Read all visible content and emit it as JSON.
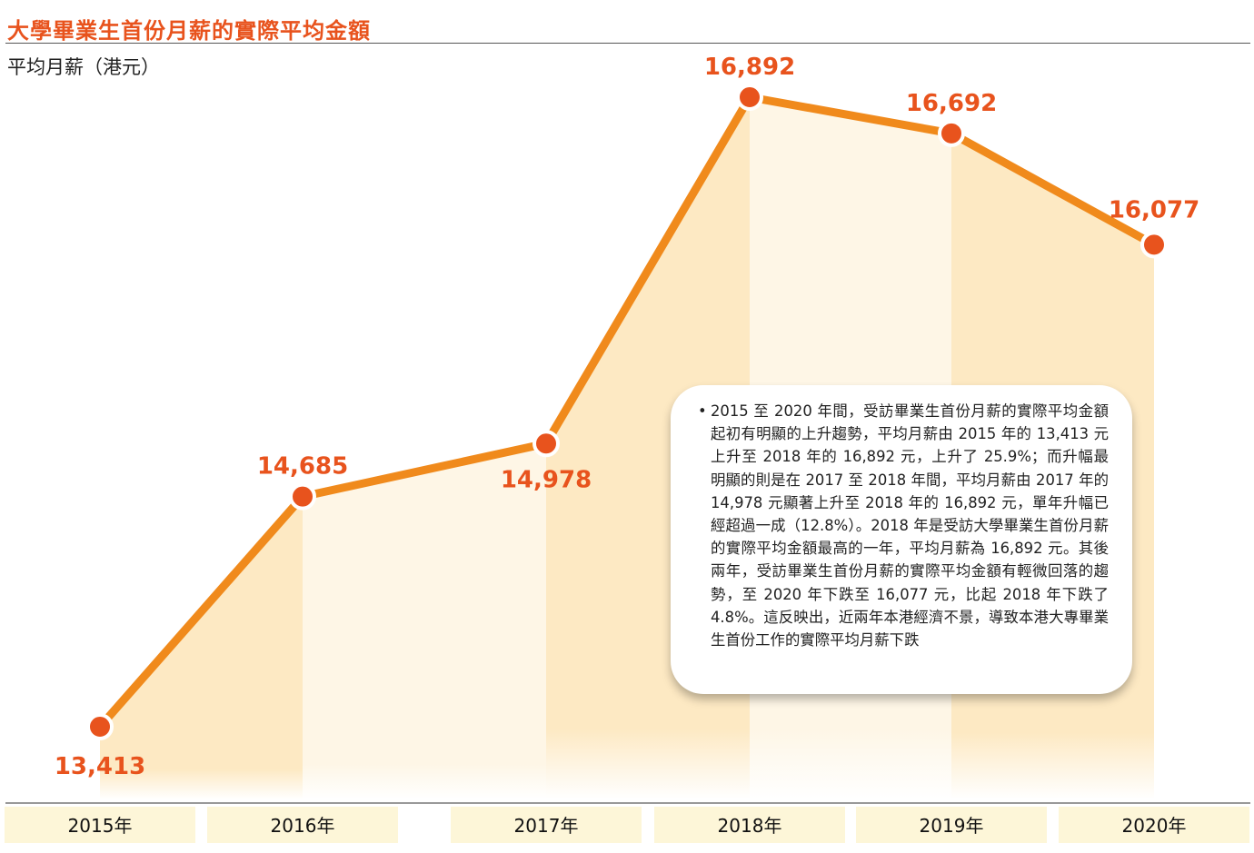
{
  "title": "大學畢業生首份月薪的實際平均金額",
  "unit_label": "平均月薪（港元）",
  "chart_data": {
    "type": "area",
    "categories": [
      "2015年",
      "2016年",
      "2017年",
      "2018年",
      "2019年",
      "2020年"
    ],
    "values": [
      13413,
      14685,
      14978,
      16892,
      16692,
      16077
    ],
    "value_labels": [
      "13,413",
      "14,685",
      "14,978",
      "16,892",
      "16,692",
      "16,077"
    ],
    "title": "大學畢業生首份月薪的實際平均金額",
    "ylabel": "平均月薪（港元）",
    "xlabel": "",
    "grid": false,
    "colors": {
      "line": "#f08a1c",
      "point": "#e8531d",
      "label": "#e8531d",
      "band_dark": "#fde9c3",
      "band_light": "#fef6e6",
      "category_band": "#fdf6d8"
    }
  },
  "note": {
    "text": "2015 至 2020 年間，受訪畢業生首份月薪的實際平均金額起初有明顯的上升趨勢，平均月薪由 2015 年的 13,413 元上升至 2018 年的 16,892 元，上升了 25.9%；而升幅最明顯的則是在 2017 至 2018 年間，平均月薪由 2017 年的 14,978 元顯著上升至 2018 年的 16,892 元，單年升幅已經超過一成（12.8%）。2018 年是受訪大學畢業生首份月薪的實際平均金額最高的一年，平均月薪為 16,892 元。其後兩年，受訪畢業生首份月薪的實際平均金額有輕微回落的趨勢，至 2020 年下跌至 16,077 元，比起 2018 年下跌了 4.8%。這反映出，近兩年本港經濟不景，導致本港大專畢業生首份工作的實際平均月薪下跌"
  }
}
